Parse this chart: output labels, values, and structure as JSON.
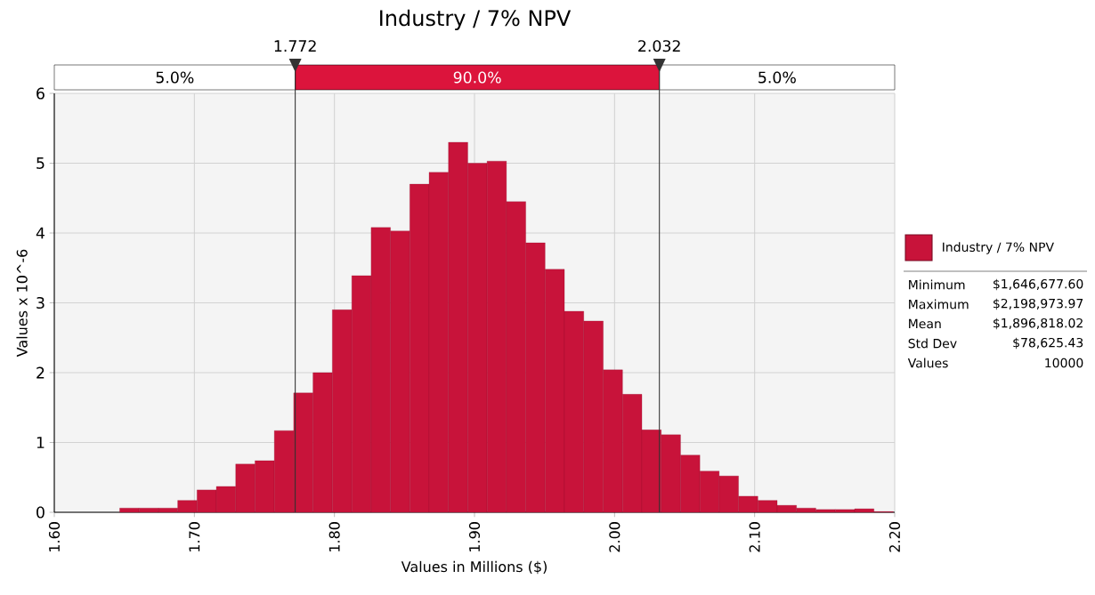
{
  "chart_data": {
    "type": "histogram",
    "title": "Industry / 7% NPV",
    "xlabel": "Values in Millions ($)",
    "ylabel": "Values x 10^-6",
    "bins": [
      1.6467,
      1.6605,
      1.6743,
      1.6881,
      1.7019,
      1.7157,
      1.7295,
      1.7433,
      1.7571,
      1.7709,
      1.7847,
      1.7985,
      1.8124,
      1.8262,
      1.84,
      1.8538,
      1.8676,
      1.8814,
      1.8952,
      1.909,
      1.9228,
      1.9366,
      1.9504,
      1.9642,
      1.978,
      1.9919,
      2.0057,
      2.0195,
      2.0333,
      2.0471,
      2.0609,
      2.0747,
      2.0885,
      2.1023,
      2.1161,
      2.1299,
      2.1437,
      2.1576,
      2.1714,
      2.1852,
      2.199
    ],
    "series": [
      {
        "name": "Industry / 7% NPV",
        "color": "#c8133a",
        "values": [
          0.06,
          0.06,
          0.06,
          0.17,
          0.32,
          0.37,
          0.69,
          0.74,
          1.17,
          1.71,
          2.0,
          2.9,
          3.39,
          4.08,
          4.03,
          4.7,
          4.87,
          5.3,
          5.0,
          5.03,
          4.45,
          3.86,
          3.48,
          2.88,
          2.74,
          2.04,
          1.69,
          1.18,
          1.11,
          0.82,
          0.59,
          0.52,
          0.23,
          0.17,
          0.1,
          0.06,
          0.04,
          0.04,
          0.05,
          0.01
        ]
      }
    ],
    "xlim": [
      1.6,
      2.2
    ],
    "xticks": [
      {
        "value": 1.6,
        "label": "1.60"
      },
      {
        "value": 1.7,
        "label": "1.70"
      },
      {
        "value": 1.8,
        "label": "1.80"
      },
      {
        "value": 1.9,
        "label": "1.90"
      },
      {
        "value": 2.0,
        "label": "2.00"
      },
      {
        "value": 2.1,
        "label": "2.10"
      },
      {
        "value": 2.2,
        "label": "2.20"
      }
    ],
    "ylim": [
      0,
      6
    ],
    "yticks": [
      0,
      1,
      2,
      3,
      4,
      5,
      6
    ],
    "grid": true,
    "legend": "right",
    "ref_lines": [
      {
        "axis": "x",
        "value": 1.772,
        "label": "1.772",
        "color": "#333333"
      },
      {
        "axis": "x",
        "value": 2.032,
        "label": "2.032",
        "color": "#333333"
      }
    ],
    "annotations": [
      "5.0%",
      "90.0%",
      "5.0%",
      "Minimum",
      "$1,646,677.60",
      "Maximum",
      "$2,198,973.97",
      "Mean",
      "$1,896,818.02",
      "Std Dev",
      "$78,625.43",
      "Values",
      "10000"
    ]
  }
}
